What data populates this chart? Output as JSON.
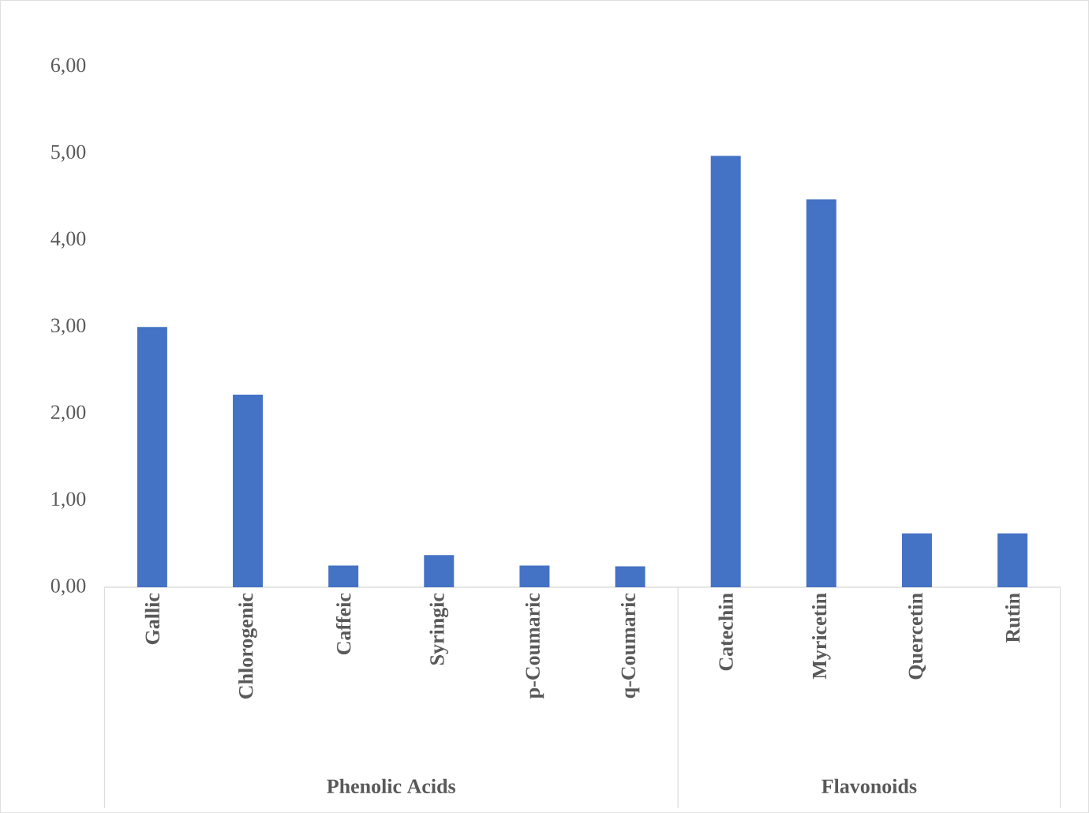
{
  "chart_data": {
    "type": "bar",
    "categories": [
      "Gallic",
      "Chlorogenic",
      "Caffeic",
      "Syringic",
      "p-Coumaric",
      "q-Coumaric",
      "Catechin",
      "Myricetin",
      "Quercetin",
      "Rutin"
    ],
    "values": [
      3.0,
      2.22,
      0.25,
      0.37,
      0.25,
      0.24,
      4.97,
      4.47,
      0.62,
      0.62
    ],
    "color": "#4472c4",
    "ylim": [
      0,
      6
    ],
    "yticks": [
      {
        "value": 0,
        "label": "0,00"
      },
      {
        "value": 1,
        "label": "1,00"
      },
      {
        "value": 2,
        "label": "2,00"
      },
      {
        "value": 3,
        "label": "3,00"
      },
      {
        "value": 4,
        "label": "4,00"
      },
      {
        "value": 5,
        "label": "5,00"
      },
      {
        "value": 6,
        "label": "6,00"
      }
    ],
    "annotations": [
      "Phenolic Acids",
      "Flavonoids"
    ]
  }
}
